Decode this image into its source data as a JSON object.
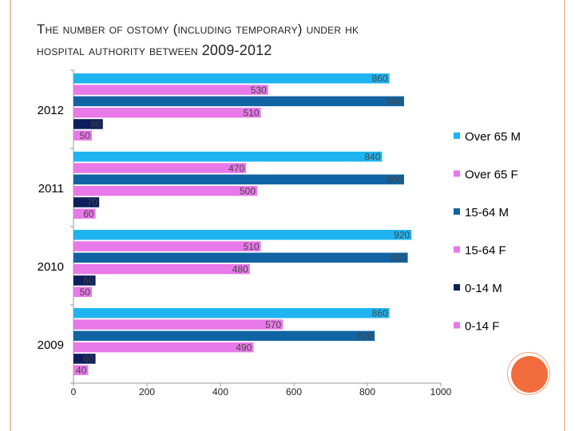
{
  "title": {
    "line1_prefix": "T",
    "line1_rest": "he number of ostomy (including temporary) under HK",
    "line2_text": "hospital authority between",
    "line2_years": "2009-2012"
  },
  "colors": {
    "Over 65 M": "#1fb4f0",
    "Over 65 F": "#e879e8",
    "15-64 M": "#1164a3",
    "15-64 F": "#e879e8",
    "0-14 M": "#0d1e5c",
    "0-14 F": "#e879e8",
    "frame": "#e8c9b0",
    "deco": "#f26d3d"
  },
  "chart_data": {
    "type": "bar",
    "orientation": "horizontal",
    "categories": [
      "2009",
      "2010",
      "2011",
      "2012"
    ],
    "series": [
      {
        "name": "Over 65 M",
        "values": [
          860,
          920,
          840,
          860
        ]
      },
      {
        "name": "Over 65 F",
        "values": [
          570,
          510,
          470,
          530
        ]
      },
      {
        "name": "15-64 M",
        "values": [
          820,
          910,
          900,
          900
        ]
      },
      {
        "name": "15-64 F",
        "values": [
          490,
          480,
          500,
          510
        ]
      },
      {
        "name": "0-14 M",
        "values": [
          60,
          60,
          70,
          80
        ]
      },
      {
        "name": "0-14 F",
        "values": [
          40,
          50,
          60,
          50
        ]
      }
    ],
    "xlim": [
      0,
      1000
    ],
    "xticks": [
      "0",
      "200",
      "400",
      "600",
      "800",
      "1000"
    ],
    "legend_position": "right",
    "grid": false
  }
}
